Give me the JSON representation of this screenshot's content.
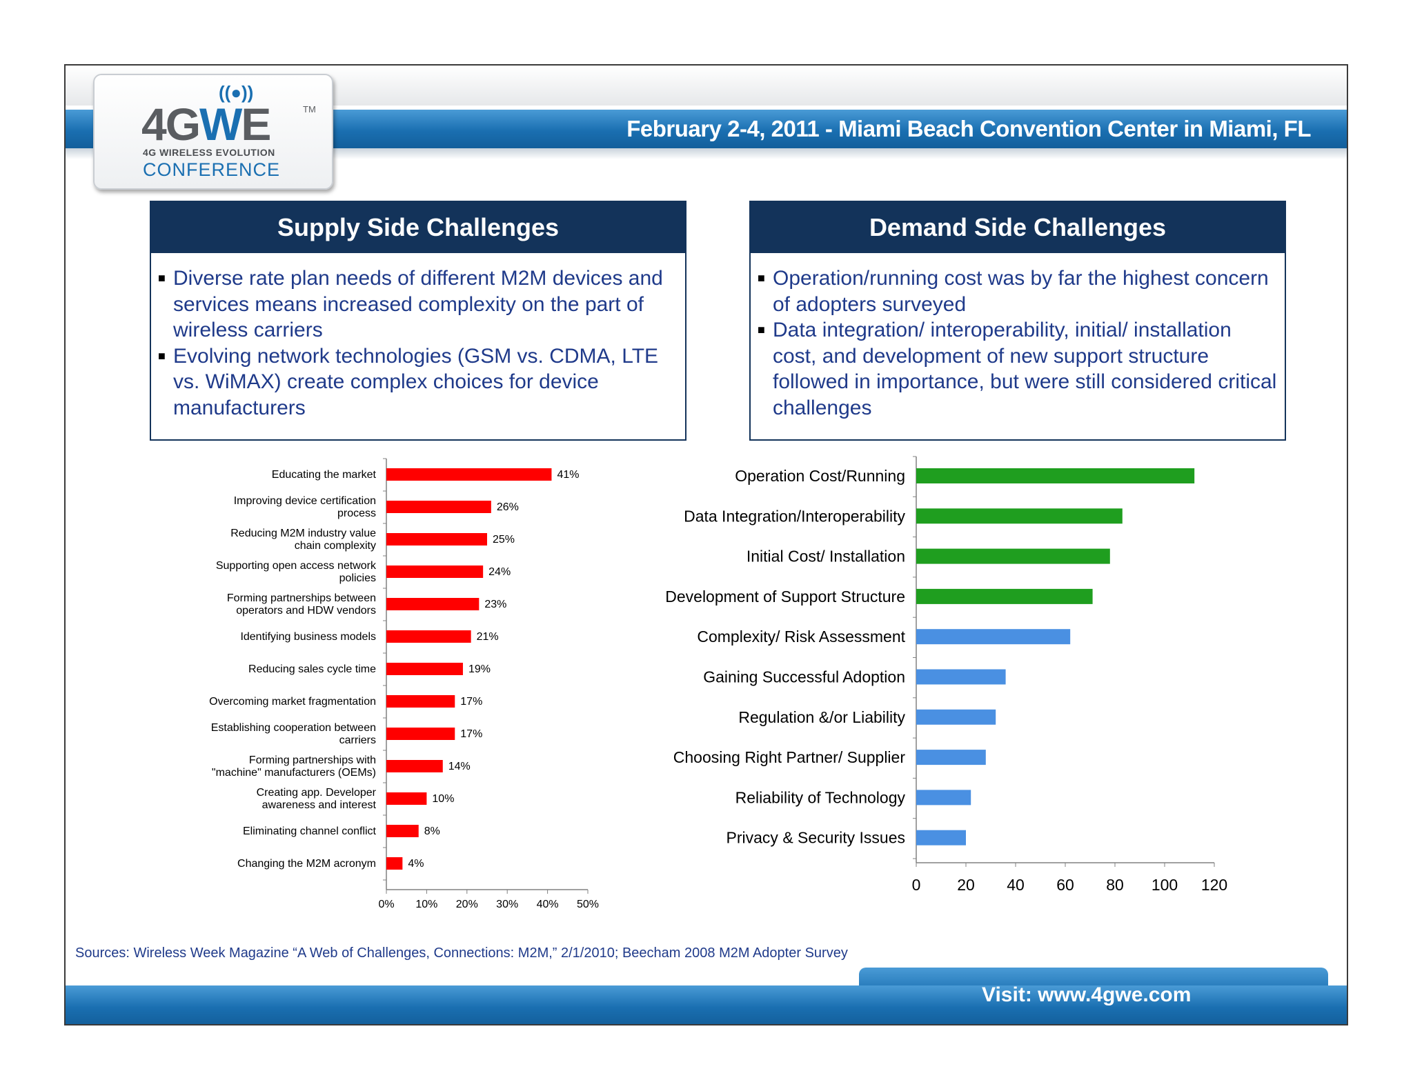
{
  "header": {
    "event_text": "February 2-4, 2011 - Miami Beach Convention Center in Miami, FL"
  },
  "logo": {
    "signal": "((●))",
    "main_prefix": "4G",
    "main_highlight": "W",
    "main_suffix": "E",
    "tm": "TM",
    "sub": "4G WIRELESS EVOLUTION",
    "conference": "CONFERENCE"
  },
  "supply_panel": {
    "title": "Supply Side Challenges",
    "bullets": [
      "Diverse rate plan needs of different M2M devices and services means increased complexity on the part of wireless carriers",
      "Evolving network technologies (GSM vs. CDMA, LTE vs. WiMAX) create complex choices for device manufacturers"
    ]
  },
  "demand_panel": {
    "title": "Demand Side Challenges",
    "bullets": [
      "Operation/running cost was by far the highest concern of adopters surveyed",
      "Data integration/ interoperability, initial/ installation cost, and development of new support structure followed in importance, but were still considered critical challenges"
    ]
  },
  "colors": {
    "red_bar": "#ff0000",
    "green_bar": "#1f9e1f",
    "blue_bar": "#4a90e2",
    "navy": "#13335a",
    "header_blue": "#1a6fb1"
  },
  "chart_data": [
    {
      "type": "bar",
      "orientation": "horizontal",
      "categories": [
        "Educating the market",
        "Improving device certification process",
        "Reducing M2M industry value chain complexity",
        "Supporting open access network policies",
        "Forming partnerships between operators and HDW vendors",
        "Identifying business models",
        "Reducing sales cycle time",
        "Overcoming market fragmentation",
        "Establishing cooperation between carriers",
        "Forming partnerships with \"machine\" manufacturers (OEMs)",
        "Creating app. Developer awareness and interest",
        "Eliminating channel conflict",
        "Changing the M2M acronym"
      ],
      "category_lines": [
        [
          "Educating the market"
        ],
        [
          "Improving device certification",
          "process"
        ],
        [
          "Reducing M2M industry value",
          "chain complexity"
        ],
        [
          "Supporting open access network",
          "policies"
        ],
        [
          "Forming partnerships between",
          "operators and HDW vendors"
        ],
        [
          "Identifying business models"
        ],
        [
          "Reducing sales cycle time"
        ],
        [
          "Overcoming market fragmentation"
        ],
        [
          "Establishing cooperation between",
          "carriers"
        ],
        [
          "Forming partnerships with",
          "\"machine\" manufacturers (OEMs)"
        ],
        [
          "Creating app. Developer",
          "awareness and interest"
        ],
        [
          "Eliminating channel conflict"
        ],
        [
          "Changing the M2M acronym"
        ]
      ],
      "values": [
        41,
        26,
        25,
        24,
        23,
        21,
        19,
        17,
        17,
        14,
        10,
        8,
        4
      ],
      "data_labels": [
        "41%",
        "26%",
        "25%",
        "24%",
        "23%",
        "21%",
        "19%",
        "17%",
        "17%",
        "14%",
        "10%",
        "8%",
        "4%"
      ],
      "xlim": [
        0,
        50
      ],
      "xticks": [
        "0%",
        "10%",
        "20%",
        "30%",
        "40%",
        "50%"
      ],
      "grid": false,
      "bar_color": "#ff0000"
    },
    {
      "type": "bar",
      "orientation": "horizontal",
      "categories": [
        "Operation Cost/Running",
        "Data Integration/Interoperability",
        "Initial Cost/ Installation",
        "Development of Support Structure",
        "Complexity/ Risk Assessment",
        "Gaining Successful Adoption",
        "Regulation &/or Liability",
        "Choosing Right Partner/ Supplier",
        "Reliability of Technology",
        "Privacy & Security Issues"
      ],
      "values": [
        112,
        83,
        78,
        71,
        62,
        36,
        32,
        28,
        22,
        20
      ],
      "bar_colors": [
        "#1f9e1f",
        "#1f9e1f",
        "#1f9e1f",
        "#1f9e1f",
        "#4a90e2",
        "#4a90e2",
        "#4a90e2",
        "#4a90e2",
        "#4a90e2",
        "#4a90e2"
      ],
      "xlim": [
        0,
        120
      ],
      "xticks": [
        "0",
        "20",
        "40",
        "60",
        "80",
        "100",
        "120"
      ],
      "grid": false
    }
  ],
  "footer": {
    "sources": "Sources: Wireless Week Magazine “A Web of Challenges, Connections: M2M,” 2/1/2010; Beecham 2008 M2M Adopter Survey",
    "visit": "Visit: www.4gwe.com"
  }
}
